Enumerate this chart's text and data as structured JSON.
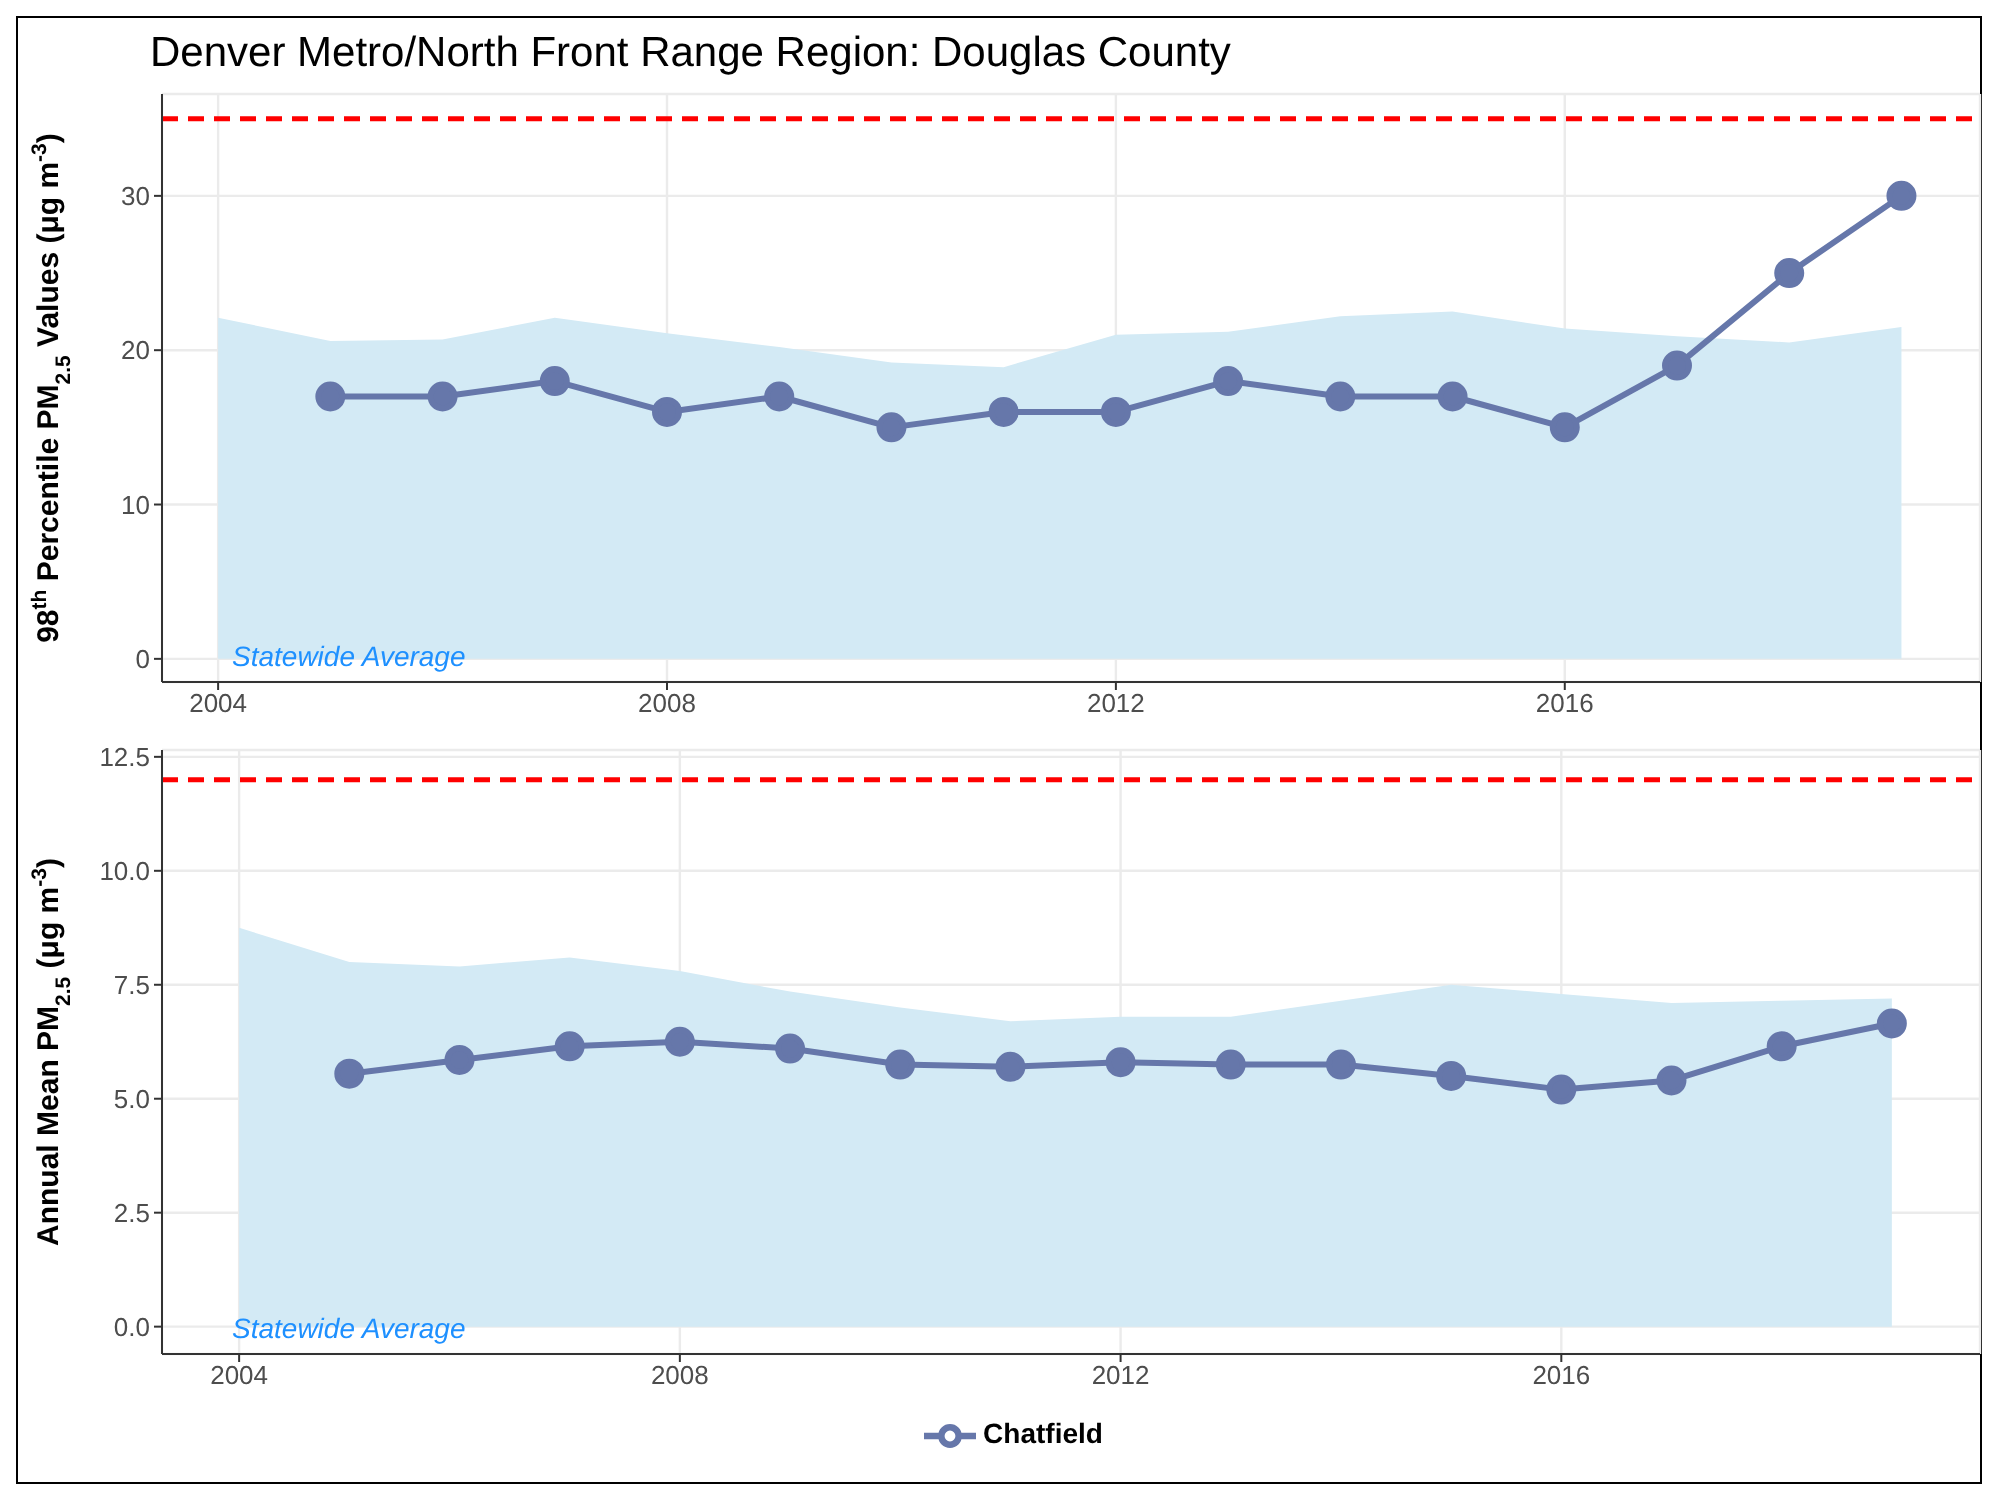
{
  "chart_data": [
    {
      "type": "area",
      "title": "Denver Metro/North Front Range Region: Douglas County",
      "ylabel": "98$^{th}$ Percentile PM$_{2.5}$ Values (μg m$^{-3}$)",
      "xlim": [
        2003.5,
        2019.7
      ],
      "xticks": [
        2004,
        2008,
        2012,
        2016
      ],
      "ylim": [
        -1.5,
        36.6
      ],
      "yticks": [
        0,
        10,
        20,
        30
      ],
      "grid": true,
      "legend": false,
      "marker": "circle",
      "annotations": [
        "Statewide Average"
      ],
      "ref_lines": [
        {
          "axis": "y",
          "value": 35,
          "color": "#ff0000",
          "line_style": "dashed"
        }
      ],
      "series": [
        {
          "marker": "none",
          "color": "#d3eaf5",
          "x": [
            2004,
            2005,
            2006,
            2007,
            2008,
            2009,
            2010,
            2011,
            2012,
            2013,
            2014,
            2015,
            2016,
            2017,
            2018,
            2019
          ],
          "values": [
            22.1,
            20.6,
            20.7,
            22.1,
            21.1,
            20.2,
            19.2,
            18.9,
            21.0,
            21.2,
            22.2,
            22.5,
            21.4,
            20.9,
            20.5,
            21.5
          ]
        },
        {
          "type": "line",
          "color": "#6677aa",
          "x": [
            2005,
            2006,
            2007,
            2008,
            2009,
            2010,
            2011,
            2012,
            2013,
            2014,
            2015,
            2016,
            2017,
            2018,
            2019
          ],
          "values": [
            17,
            17,
            18,
            16,
            17,
            15,
            16,
            16,
            18,
            17,
            17,
            15,
            19,
            25,
            30
          ]
        }
      ]
    },
    {
      "type": "area",
      "ylabel": "Annual Mean PM$_{2.5}$ (μg m$^{-3}$)",
      "xlim": [
        2003.3,
        2019.8
      ],
      "xticks": [
        2004,
        2008,
        2012,
        2016
      ],
      "ylim": [
        -0.6,
        12.65
      ],
      "yticks": [
        {
          "value": 0,
          "label": "0.0"
        },
        2.5,
        {
          "value": 5,
          "label": "5.0"
        },
        7.5,
        {
          "value": 10,
          "label": "10.0"
        },
        12.5
      ],
      "grid": true,
      "legend": "bottom",
      "marker": "circle",
      "annotations": [
        "Statewide Average"
      ],
      "ref_lines": [
        {
          "axis": "y",
          "value": 12,
          "color": "#ff0000",
          "line_style": "dashed"
        }
      ],
      "series": [
        {
          "marker": "none",
          "color": "#d3eaf5",
          "x": [
            2004,
            2005,
            2006,
            2007,
            2008,
            2009,
            2010,
            2011,
            2012,
            2013,
            2014,
            2015,
            2016,
            2017,
            2018,
            2019
          ],
          "values": [
            8.75,
            8.0,
            7.9,
            8.1,
            7.8,
            7.35,
            7.0,
            6.7,
            6.8,
            6.8,
            7.15,
            7.5,
            7.3,
            7.1,
            7.15,
            7.2
          ]
        },
        {
          "type": "line",
          "name": "Chatfield",
          "color": "#6677aa",
          "x": [
            2005,
            2006,
            2007,
            2008,
            2009,
            2010,
            2011,
            2012,
            2013,
            2014,
            2015,
            2016,
            2017,
            2018,
            2019
          ],
          "values": [
            5.55,
            5.85,
            6.15,
            6.25,
            6.1,
            5.75,
            5.7,
            5.8,
            5.75,
            5.75,
            5.5,
            5.2,
            5.4,
            6.15,
            6.65
          ]
        }
      ]
    }
  ]
}
